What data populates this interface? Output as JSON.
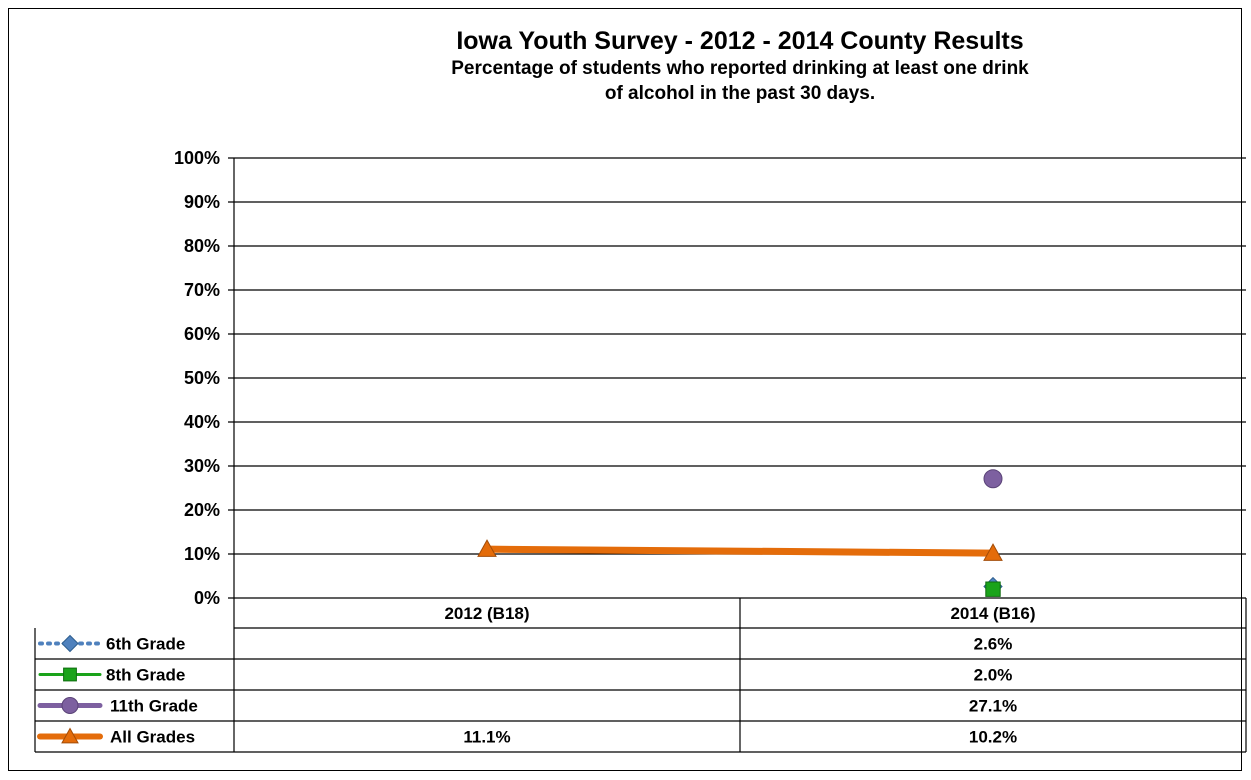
{
  "chart_data": {
    "type": "line",
    "title": "Iowa Youth Survey - 2012 - 2014 County Results",
    "subtitle_lines": [
      "Percentage of students who reported drinking at least one drink",
      "of alcohol  in the past 30 days."
    ],
    "categories": [
      "2012 (B18)",
      "2014 (B16)"
    ],
    "y_ticks": [
      "0%",
      "10%",
      "20%",
      "30%",
      "40%",
      "50%",
      "60%",
      "70%",
      "80%",
      "90%",
      "100%"
    ],
    "ylim": [
      0,
      100
    ],
    "grid": true,
    "legend": "data-table-below",
    "series": [
      {
        "name": "6th Grade",
        "values": [
          null,
          2.6
        ],
        "labels": [
          "",
          "2.6%"
        ],
        "color": "#4f81bd",
        "marker": "diamond",
        "line": "dotted"
      },
      {
        "name": "8th Grade",
        "values": [
          null,
          2.0
        ],
        "labels": [
          "",
          "2.0%"
        ],
        "color": "#1aa31a",
        "marker": "square",
        "line": "solid-thin"
      },
      {
        "name": "11th Grade",
        "values": [
          null,
          27.1
        ],
        "labels": [
          "",
          "27.1%"
        ],
        "color": "#7d60a0",
        "marker": "circle",
        "line": "solid"
      },
      {
        "name": "All Grades",
        "values": [
          11.1,
          10.2
        ],
        "labels": [
          "11.1%",
          "10.2%"
        ],
        "color": "#e46c0a",
        "marker": "triangle",
        "line": "solid-thick"
      }
    ]
  }
}
